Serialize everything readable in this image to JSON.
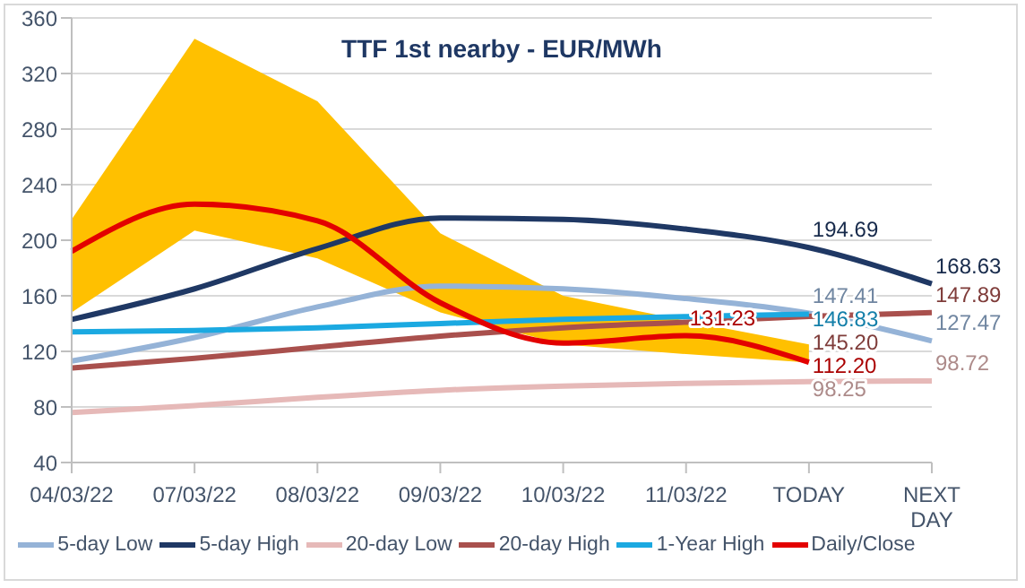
{
  "chart_data": {
    "type": "line",
    "title": "TTF 1st nearby - EUR/MWh",
    "categories": [
      "04/03/22",
      "07/03/22",
      "08/03/22",
      "09/03/22",
      "10/03/22",
      "11/03/22",
      "TODAY",
      "NEXT DAY"
    ],
    "series": [
      {
        "name": "5-day Low",
        "color": "#95b3d7",
        "values": [
          113,
          130,
          152,
          167,
          165,
          158,
          147.41,
          127.47
        ],
        "value_labels": [
          null,
          null,
          null,
          null,
          null,
          null,
          "147.41",
          "127.47"
        ]
      },
      {
        "name": "5-day High",
        "color": "#1f3864",
        "values": [
          143,
          165,
          194,
          216,
          215,
          208,
          194.69,
          168.63
        ],
        "value_labels": [
          null,
          null,
          null,
          null,
          null,
          null,
          "194.69",
          "168.63"
        ]
      },
      {
        "name": "20-day Low",
        "color": "#e6b9b8",
        "values": [
          76,
          81,
          87,
          92,
          95,
          97,
          98.25,
          98.72
        ],
        "value_labels": [
          null,
          null,
          null,
          null,
          null,
          null,
          "98.25",
          "98.72"
        ]
      },
      {
        "name": "20-day High",
        "color": "#a9504d",
        "values": [
          108,
          115,
          123,
          131,
          137,
          141,
          145.2,
          147.89
        ],
        "value_labels": [
          null,
          null,
          null,
          null,
          null,
          null,
          "145.20",
          "147.89"
        ]
      },
      {
        "name": "1-Year High",
        "color": "#1ba9e1",
        "values": [
          134,
          135,
          137,
          140,
          143,
          145,
          146.83,
          null
        ],
        "value_labels": [
          null,
          null,
          null,
          null,
          null,
          null,
          "146.83",
          null
        ]
      },
      {
        "name": "Daily/Close",
        "color": "#e30000",
        "values": [
          192,
          226,
          214,
          155,
          126,
          131.23,
          112.2,
          null
        ],
        "value_labels": [
          null,
          null,
          null,
          null,
          null,
          "131.23",
          "112.20",
          null
        ],
        "lower": [
          148,
          207,
          187,
          148,
          125,
          118,
          112,
          null
        ],
        "upper": [
          215,
          345,
          300,
          205,
          160,
          142,
          125,
          null
        ]
      }
    ],
    "ylim": [
      40,
      360
    ],
    "yticks": [
      40,
      80,
      120,
      160,
      200,
      240,
      280,
      320,
      360
    ],
    "grid": "y",
    "legend": "bottom",
    "marker": "none",
    "line_style": "solid"
  }
}
